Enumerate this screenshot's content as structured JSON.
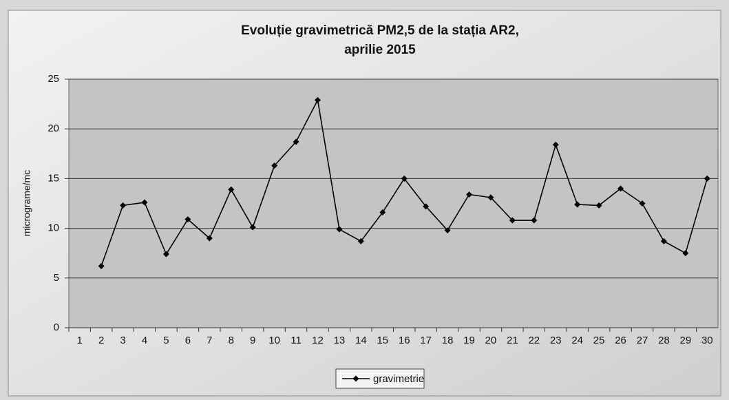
{
  "chart_data": {
    "type": "line",
    "title": [
      "Evoluție  gravimetrică PM2,5 de la stația AR2,",
      "aprilie 2015"
    ],
    "y_label": "micrograme/mc",
    "categories": [
      "1",
      "2",
      "3",
      "4",
      "5",
      "6",
      "7",
      "8",
      "9",
      "10",
      "11",
      "12",
      "13",
      "14",
      "15",
      "16",
      "17",
      "18",
      "19",
      "20",
      "21",
      "22",
      "23",
      "24",
      "25",
      "26",
      "27",
      "28",
      "29",
      "30"
    ],
    "series": [
      {
        "name": "gravimetrie",
        "color": "#000000",
        "values": [
          null,
          6.2,
          12.3,
          12.6,
          7.4,
          10.9,
          9.0,
          13.9,
          10.1,
          16.3,
          18.7,
          22.9,
          9.9,
          8.7,
          11.6,
          15.0,
          12.2,
          9.8,
          13.4,
          13.1,
          10.8,
          10.8,
          18.4,
          12.4,
          12.3,
          14.0,
          12.5,
          8.7,
          7.5,
          15.0
        ]
      }
    ],
    "ylim": [
      0,
      25
    ],
    "yticks": [
      0,
      5,
      10,
      15,
      20,
      25
    ],
    "grid": true,
    "legend": "bottom"
  }
}
